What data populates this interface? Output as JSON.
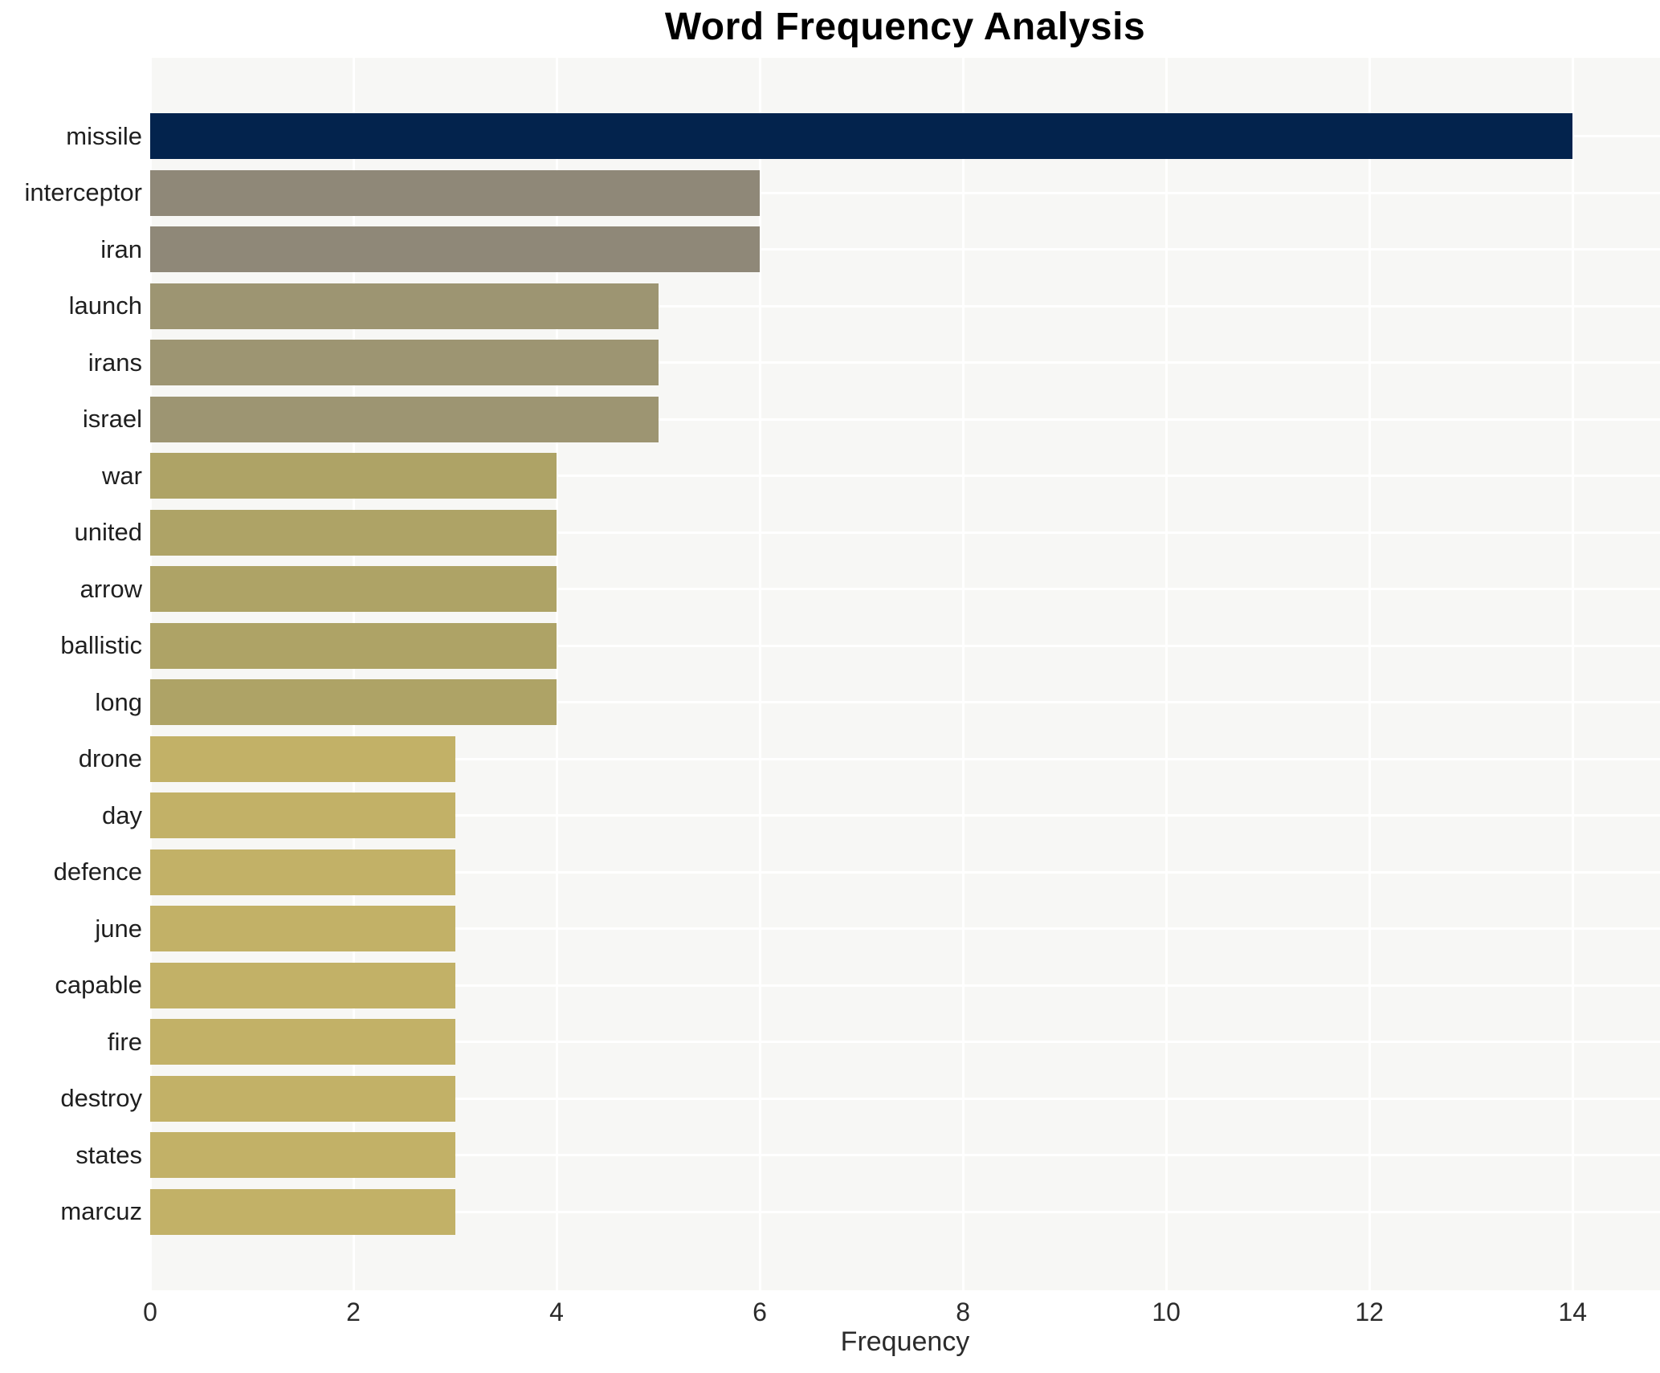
{
  "chart_data": {
    "type": "bar",
    "orientation": "horizontal",
    "title": "Word Frequency Analysis",
    "xlabel": "Frequency",
    "ylabel": "",
    "categories": [
      "missile",
      "interceptor",
      "iran",
      "launch",
      "irans",
      "israel",
      "war",
      "united",
      "arrow",
      "ballistic",
      "long",
      "drone",
      "day",
      "defence",
      "june",
      "capable",
      "fire",
      "destroy",
      "states",
      "marcuz"
    ],
    "values": [
      14,
      6,
      6,
      5,
      5,
      5,
      4,
      4,
      4,
      4,
      4,
      3,
      3,
      3,
      3,
      3,
      3,
      3,
      3,
      3
    ],
    "xlim": [
      0,
      14.86
    ],
    "xticks": [
      0,
      2,
      4,
      6,
      8,
      10,
      12,
      14
    ],
    "grid": true,
    "legend": false,
    "colors": {
      "value_14": "#03234d",
      "value_6": "#8f8878",
      "value_5": "#9d9572",
      "value_4": "#aea366",
      "value_3": "#c2b167",
      "plot_background": "#f7f7f5",
      "gridline": "#ffffff",
      "title_text": "#000000",
      "tick_text": "#2b2b2b",
      "category_text": "#1f1f1f"
    }
  }
}
